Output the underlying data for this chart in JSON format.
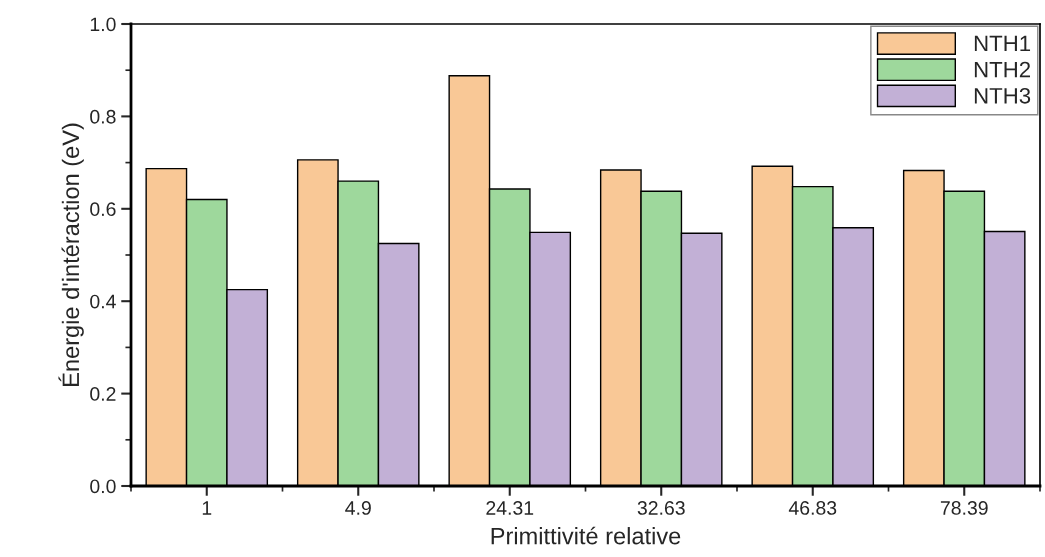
{
  "chart_data": {
    "type": "bar",
    "xlabel": "Primittivité relative",
    "ylabel": "Énergie d'intéraction (eV)",
    "categories": [
      "1",
      "4.9",
      "24.31",
      "32.63",
      "46.83",
      "78.39"
    ],
    "series": [
      {
        "name": "NTH1",
        "color": "#f9c896",
        "values": [
          0.687,
          0.706,
          0.888,
          0.684,
          0.692,
          0.683
        ]
      },
      {
        "name": "NTH2",
        "color": "#9ed89c",
        "values": [
          0.62,
          0.66,
          0.643,
          0.638,
          0.648,
          0.638
        ]
      },
      {
        "name": "NTH3",
        "color": "#c2b0d6",
        "values": [
          0.425,
          0.525,
          0.549,
          0.547,
          0.559,
          0.551
        ]
      }
    ],
    "ylim": [
      0,
      1.0
    ],
    "yticks": [
      {
        "value": 0,
        "label": "0.0"
      },
      {
        "value": 0.1,
        "label": null
      },
      {
        "value": 0.2,
        "label": "0.2"
      },
      {
        "value": 0.3,
        "label": null
      },
      {
        "value": 0.4,
        "label": "0.4"
      },
      {
        "value": 0.5,
        "label": null
      },
      {
        "value": 0.6,
        "label": "0.6"
      },
      {
        "value": 0.7,
        "label": null
      },
      {
        "value": 0.8,
        "label": "0.8"
      },
      {
        "value": 0.9,
        "label": null
      },
      {
        "value": 1.0,
        "label": "1.0"
      }
    ],
    "grid": false,
    "legend": "top right"
  }
}
